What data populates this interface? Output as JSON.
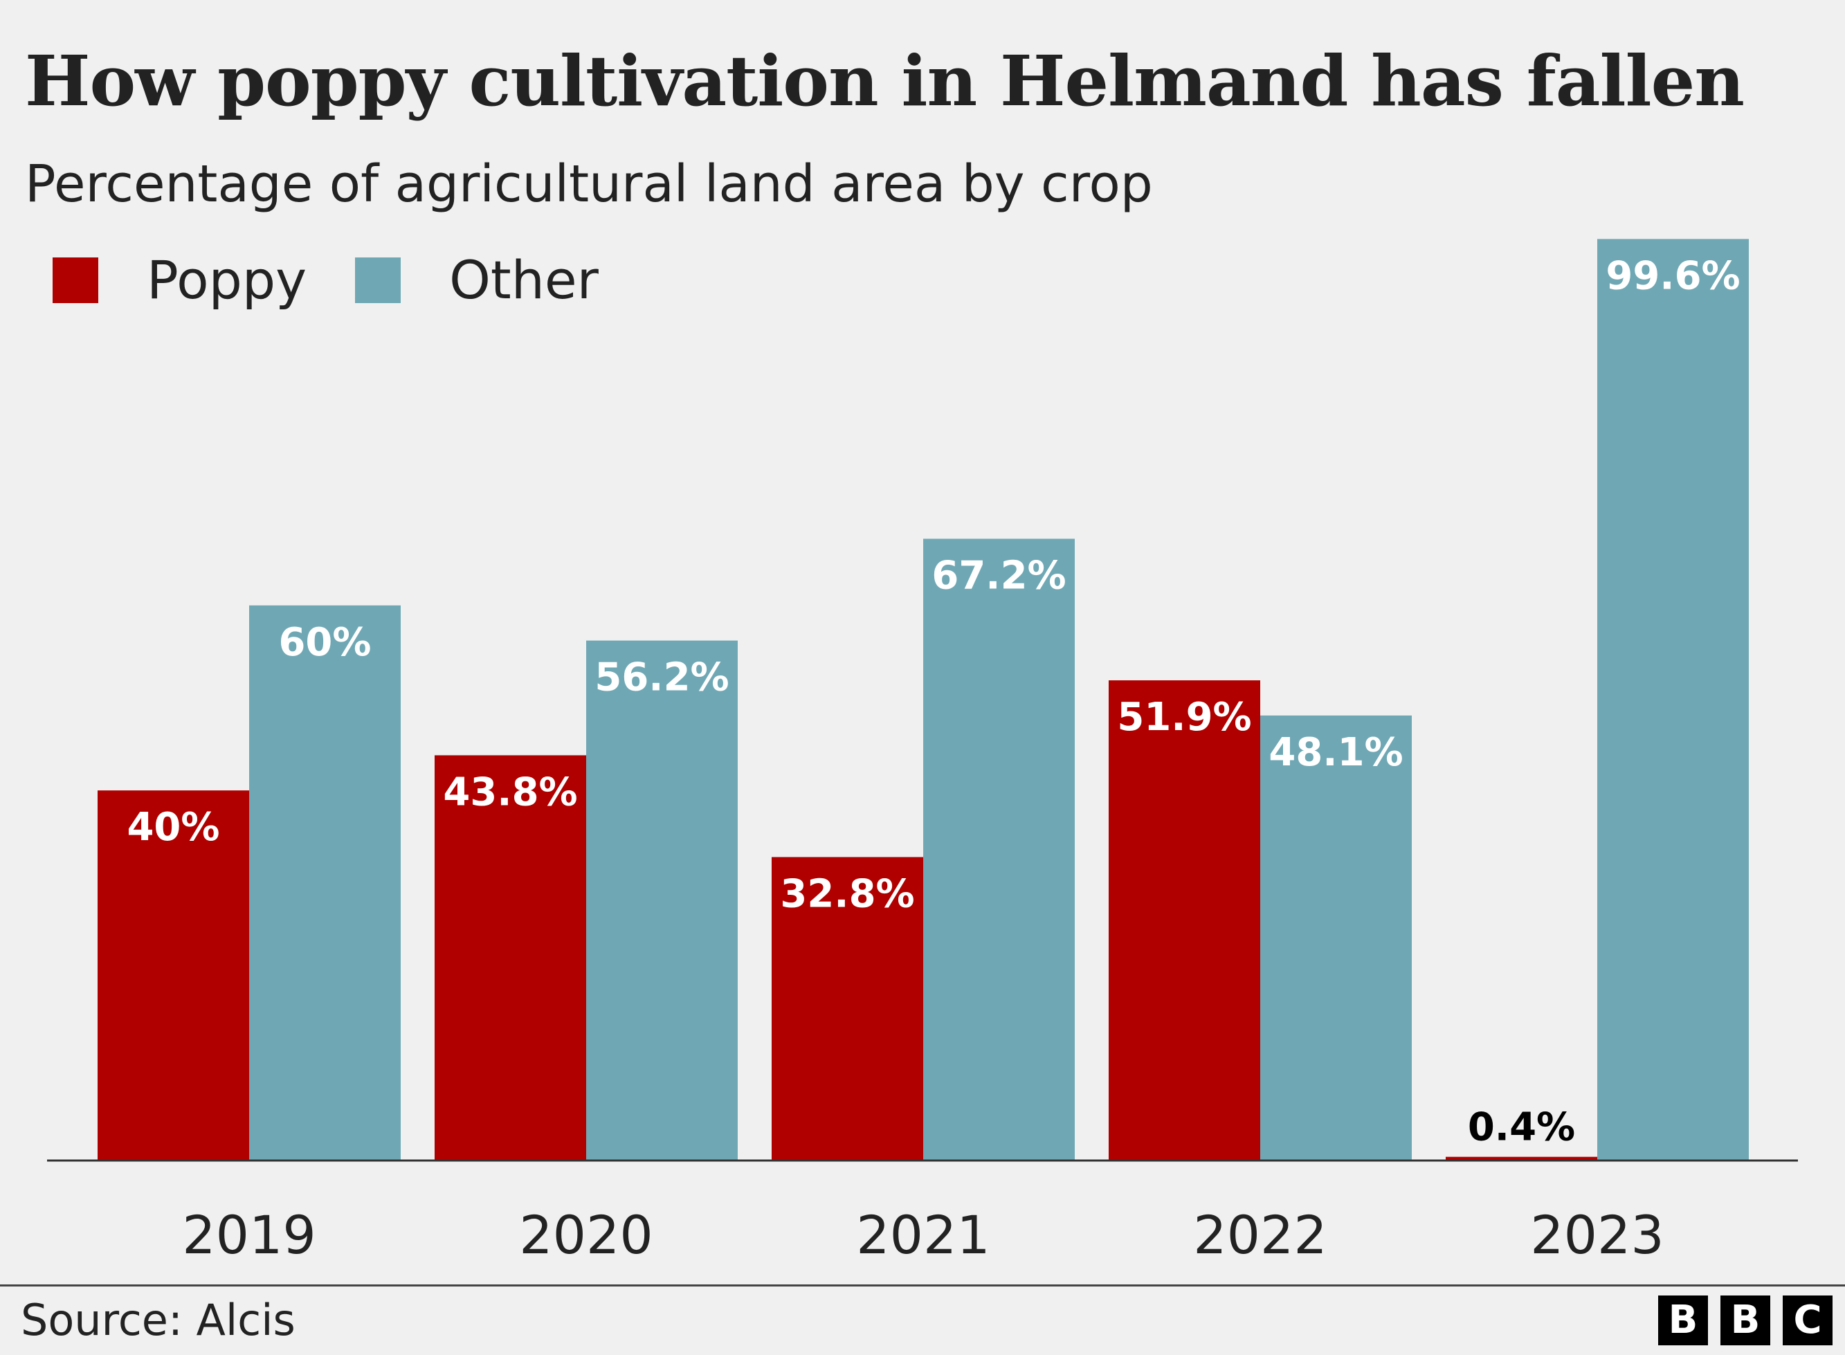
{
  "title": "How poppy cultivation in Helmand has fallen",
  "subtitle": "Percentage of agricultural land area by crop",
  "source": "Source: Alcis",
  "logo": {
    "letters": [
      "B",
      "B",
      "C"
    ]
  },
  "colors": {
    "background": "#f0f0f0",
    "poppy": "#b00000",
    "other": "#6fa8b4",
    "label_inside": "#ffffff",
    "label_outside": "#000000",
    "text": "#222222"
  },
  "chart_data": {
    "type": "bar",
    "title": "How poppy cultivation in Helmand has fallen",
    "subtitle": "Percentage of agricultural land area by crop",
    "categories": [
      "2019",
      "2020",
      "2021",
      "2022",
      "2023"
    ],
    "series": [
      {
        "name": "Poppy",
        "color": "#b00000",
        "values": [
          40,
          43.8,
          32.8,
          51.9,
          0.4
        ],
        "labels": [
          "40%",
          "43.8%",
          "32.8%",
          "51.9%",
          "0.4%"
        ]
      },
      {
        "name": "Other",
        "color": "#6fa8b4",
        "values": [
          60,
          56.2,
          67.2,
          48.1,
          99.6
        ],
        "labels": [
          "60%",
          "56.2%",
          "67.2%",
          "48.1%",
          "99.6%"
        ]
      }
    ],
    "ylim": [
      0,
      100
    ],
    "xlabel": "",
    "ylabel": "",
    "grid": false,
    "legend": "top-left",
    "data_labels": true
  }
}
